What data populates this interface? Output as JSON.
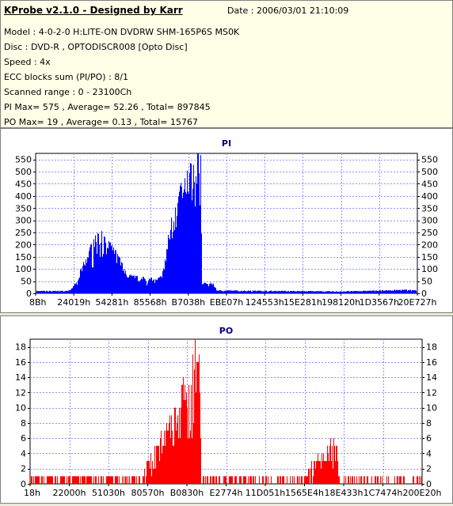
{
  "header": {
    "title": "KProbe v2.1.0 - Designed by Karr",
    "date": "Date : 2006/03/01 21:10:09",
    "lines": [
      "Model : 4-0-2-0 H:LITE-ON DVDRW SHM-165P6S MS0K",
      "Disc : DVD-R , OPTODISCR008 [Opto Disc]",
      "Speed : 4x",
      "ECC blocks sum (PI/PO) : 8/1",
      "Scanned range : 0 - 23100Ch",
      "PI Max= 575 , Average= 52.26 , Total= 897845",
      "PO Max= 19 , Average= 0.13 , Total= 15767"
    ]
  },
  "chart_data": [
    {
      "type": "bar",
      "title": "PI",
      "color": "#0000ff",
      "ylim": [
        0,
        575
      ],
      "yticks": [
        0,
        50,
        100,
        150,
        200,
        250,
        300,
        350,
        400,
        450,
        500,
        550
      ],
      "xticks": [
        "8Bh",
        "24019h",
        "54281h",
        "85568h",
        "B7038h",
        "EBE07h",
        "124553h",
        "15E281h",
        "198120h",
        "1D3567h",
        "20E727h"
      ],
      "x_range_hex": [
        "0h",
        "23100Ch"
      ],
      "profile": [
        [
          "0h",
          10
        ],
        [
          "30000h",
          10
        ],
        [
          "3C000h",
          45
        ],
        [
          "46000h",
          130
        ],
        [
          "52000h",
          200
        ],
        [
          "5E000h",
          240
        ],
        [
          "6A000h",
          200
        ],
        [
          "76000h",
          170
        ],
        [
          "84000h",
          80
        ],
        [
          "96000h",
          65
        ],
        [
          "A8000h",
          60
        ],
        [
          "B2000h",
          55
        ],
        [
          "BA000h",
          80
        ],
        [
          "C6000h",
          300
        ],
        [
          "D2000h",
          400
        ],
        [
          "DE000h",
          460
        ],
        [
          "EC000h",
          560
        ],
        [
          "F2000h",
          570
        ],
        [
          "F4000h",
          40
        ],
        [
          "104000h",
          40
        ],
        [
          "10A000h",
          12
        ],
        [
          "1C0000h",
          8
        ],
        [
          "200000h",
          12
        ],
        [
          "23100Ch",
          15
        ]
      ]
    },
    {
      "type": "bar",
      "title": "PO",
      "color": "#ff0000",
      "ylim": [
        0,
        19
      ],
      "yticks": [
        0,
        2,
        4,
        6,
        8,
        10,
        12,
        14,
        16,
        18
      ],
      "xticks": [
        "18h",
        "22000h",
        "51030h",
        "80570h",
        "B0830h",
        "E2774h",
        "11D051h",
        "1565E4h",
        "18E433h",
        "1C7474h",
        "200E20h"
      ],
      "x_range_hex": [
        "0h",
        "23100Ch"
      ],
      "profile": [
        [
          "0h",
          1.5
        ],
        [
          "A0000h",
          1.5
        ],
        [
          "A6000h",
          3
        ],
        [
          "B2000h",
          5
        ],
        [
          "C0000h",
          7
        ],
        [
          "CE000h",
          9
        ],
        [
          "DC000h",
          12
        ],
        [
          "E6000h",
          14
        ],
        [
          "EE000h",
          18
        ],
        [
          "F2000h",
          19
        ],
        [
          "F4000h",
          1.5
        ],
        [
          "180000h",
          1.2
        ],
        [
          "1B8000h",
          6
        ],
        [
          "1BA000h",
          1.2
        ],
        [
          "23100Ch",
          1.2
        ]
      ]
    }
  ]
}
